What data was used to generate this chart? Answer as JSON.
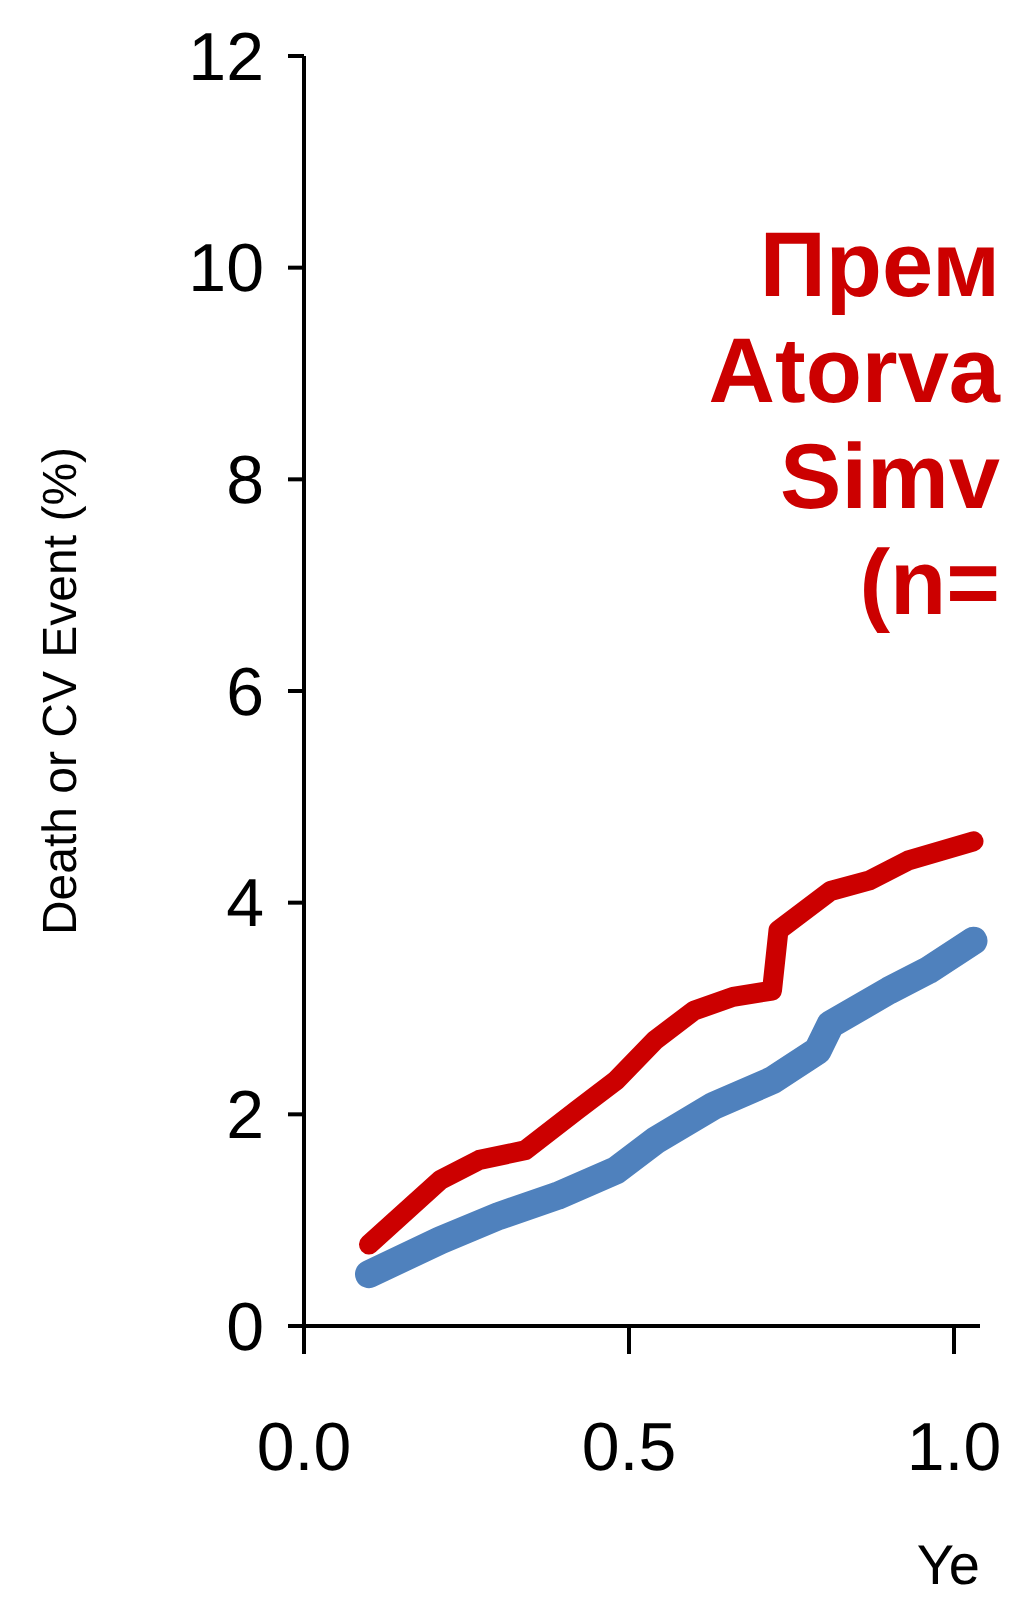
{
  "chart_data": {
    "type": "line",
    "ylabel": "Death or CV Event (%)",
    "xlabel": "Ye",
    "xlim": [
      0,
      1.04
    ],
    "xticks": [
      {
        "value": 0,
        "label": "0.0"
      },
      0.5,
      {
        "value": 1,
        "label": "1.0"
      }
    ],
    "ylim": [
      0,
      12
    ],
    "yticks": [
      0,
      2,
      4,
      6,
      8,
      10,
      12
    ],
    "marker": "none",
    "line_style": "solid",
    "annotations": [
      "Прем",
      "Atorva",
      "Simv",
      "(n="
    ],
    "series": [
      {
        "color": "#cc0000",
        "x": [
          0.1,
          0.21,
          0.27,
          0.34,
          0.42,
          0.48,
          0.54,
          0.6,
          0.66,
          0.72,
          0.73,
          0.81,
          0.87,
          0.93,
          1.03
        ],
        "values": [
          0.77,
          1.38,
          1.57,
          1.66,
          2.04,
          2.32,
          2.7,
          2.98,
          3.11,
          3.17,
          3.74,
          4.11,
          4.21,
          4.4,
          4.58
        ]
      },
      {
        "color": "#4f81bd",
        "x": [
          0.1,
          0.21,
          0.3,
          0.39,
          0.48,
          0.54,
          0.63,
          0.72,
          0.79,
          0.81,
          0.9,
          0.96,
          1.03
        ],
        "values": [
          0.49,
          0.81,
          1.04,
          1.23,
          1.47,
          1.75,
          2.08,
          2.32,
          2.6,
          2.85,
          3.17,
          3.36,
          3.64
        ]
      }
    ]
  }
}
